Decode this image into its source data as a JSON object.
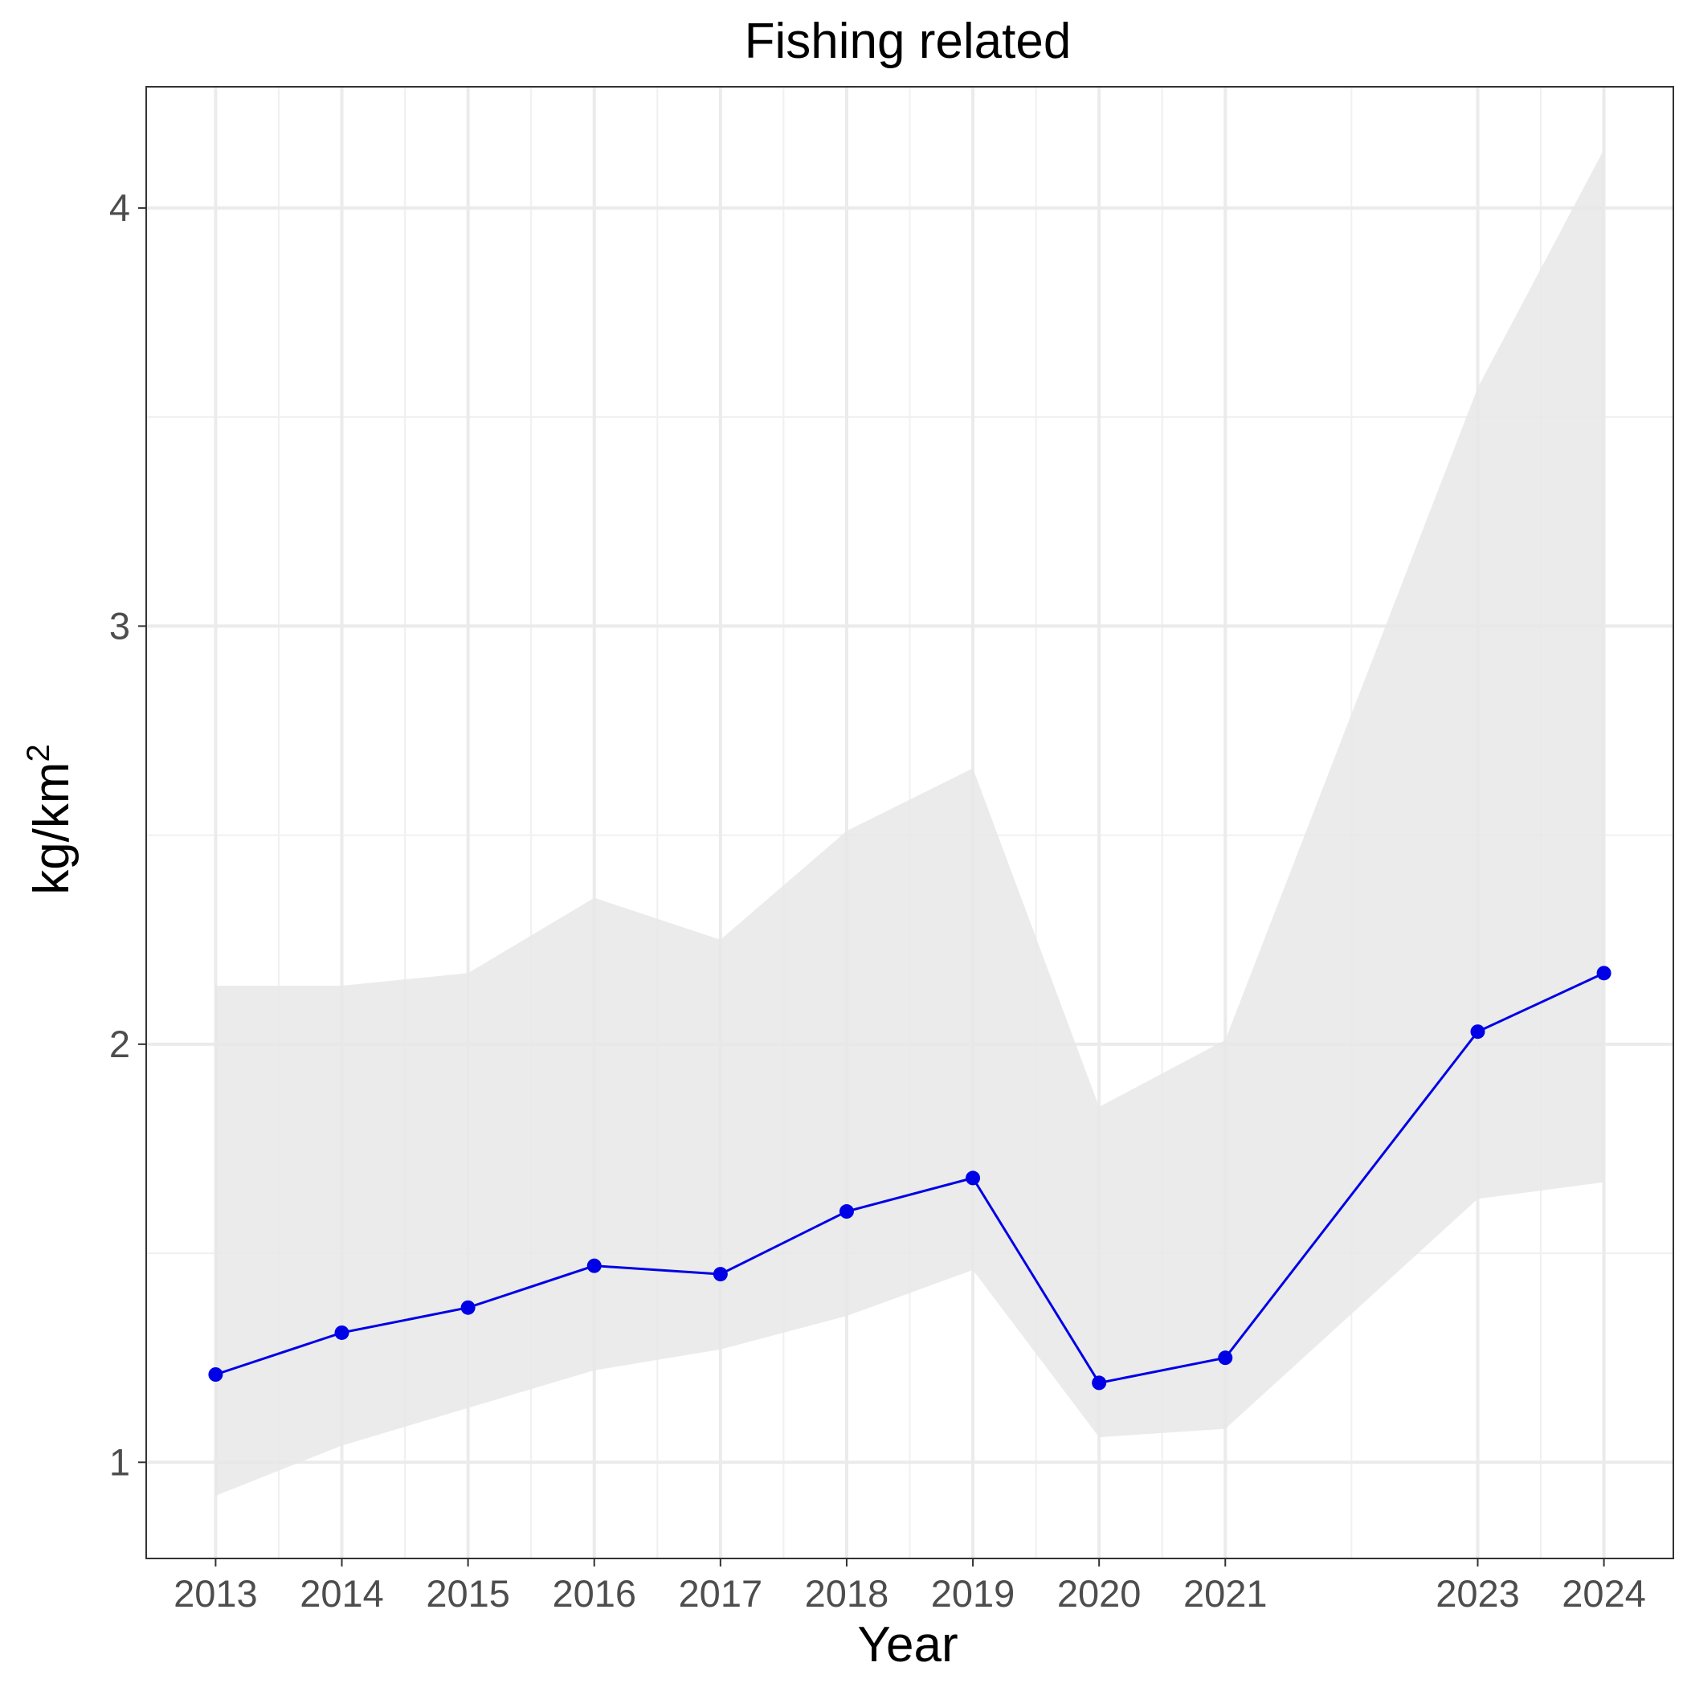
{
  "chart_data": {
    "type": "line",
    "title": "Fishing related",
    "xlabel": "Year",
    "ylabel_base": "kg/km",
    "ylabel_superscript": "2",
    "x": [
      2013,
      2014,
      2015,
      2016,
      2017,
      2018,
      2019,
      2020,
      2021,
      2023,
      2024
    ],
    "x_tick_labels": [
      "2013",
      "2014",
      "2015",
      "2016",
      "2017",
      "2018",
      "2019",
      "2020",
      "2021",
      "2023",
      "2024"
    ],
    "y_ticks": [
      1,
      2,
      3,
      4
    ],
    "y_tick_labels": [
      "1",
      "2",
      "3",
      "4"
    ],
    "xlim": [
      2012.45,
      2024.55
    ],
    "ylim": [
      0.77,
      4.29
    ],
    "series": [
      {
        "values": [
          1.21,
          1.31,
          1.37,
          1.47,
          1.45,
          1.6,
          1.68,
          1.19,
          1.25,
          2.03,
          2.17
        ],
        "color": "#0000e6"
      }
    ],
    "ribbon": {
      "lower": [
        0.92,
        1.04,
        1.13,
        1.22,
        1.27,
        1.35,
        1.46,
        1.06,
        1.08,
        1.63,
        1.67
      ],
      "upper": [
        2.14,
        2.14,
        2.17,
        2.35,
        2.25,
        2.51,
        2.66,
        1.85,
        2.01,
        3.57,
        4.14
      ],
      "color": "#e8e8e8"
    },
    "grid": true,
    "legend": "none"
  }
}
